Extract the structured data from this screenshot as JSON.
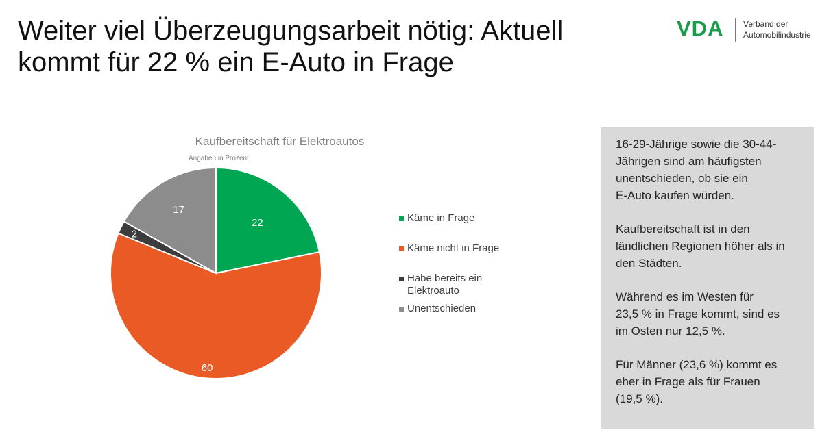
{
  "slide": {
    "title_line1": "Weiter viel Überzeugungsarbeit nötig: Aktuell",
    "title_line2": "kommt für 22 % ein E-Auto in Frage"
  },
  "logo": {
    "mark": "VDA",
    "text_line1": "Verband der",
    "text_line2": "Automobilindustrie",
    "brand_color": "#1a9a4b"
  },
  "chart_data": {
    "type": "pie",
    "title": "Kaufbereitschaft für Elektroautos",
    "subtitle": "Angaben in Prozent",
    "categories": [
      "Käme in Frage",
      "Käme nicht in Frage",
      "Habe bereits ein Elektroauto",
      "Unentschieden"
    ],
    "values": [
      22,
      60,
      2,
      17
    ],
    "colors": [
      "#00a651",
      "#ea5a25",
      "#3c3c3c",
      "#8c8c8c"
    ],
    "data_labels": [
      "22",
      "60",
      "2",
      "17"
    ],
    "legend": {
      "placement": "right",
      "entries": [
        {
          "line1": "Käme in Frage",
          "line2": ""
        },
        {
          "line1": "Käme nicht in Frage",
          "line2": ""
        },
        {
          "line1": "Habe bereits ein",
          "line2": "Elektroauto"
        },
        {
          "line1": "Unentschieden",
          "line2": ""
        }
      ]
    }
  },
  "info_box": {
    "paragraphs": [
      [
        "16-29-Jährige sowie die 30-44-",
        "Jährigen sind am häufigsten",
        "unentschieden, ob sie ein",
        "E-Auto kaufen würden."
      ],
      [
        "Kaufbereitschaft ist in den",
        "ländlichen Regionen höher als in",
        "den Städten."
      ],
      [
        "Während es im Westen für",
        "23,5 % in Frage kommt, sind es",
        "im Osten nur 12,5 %."
      ],
      [
        "Für Männer (23,6 %) kommt es",
        "eher in Frage als für Frauen",
        "(19,5 %)."
      ]
    ]
  }
}
